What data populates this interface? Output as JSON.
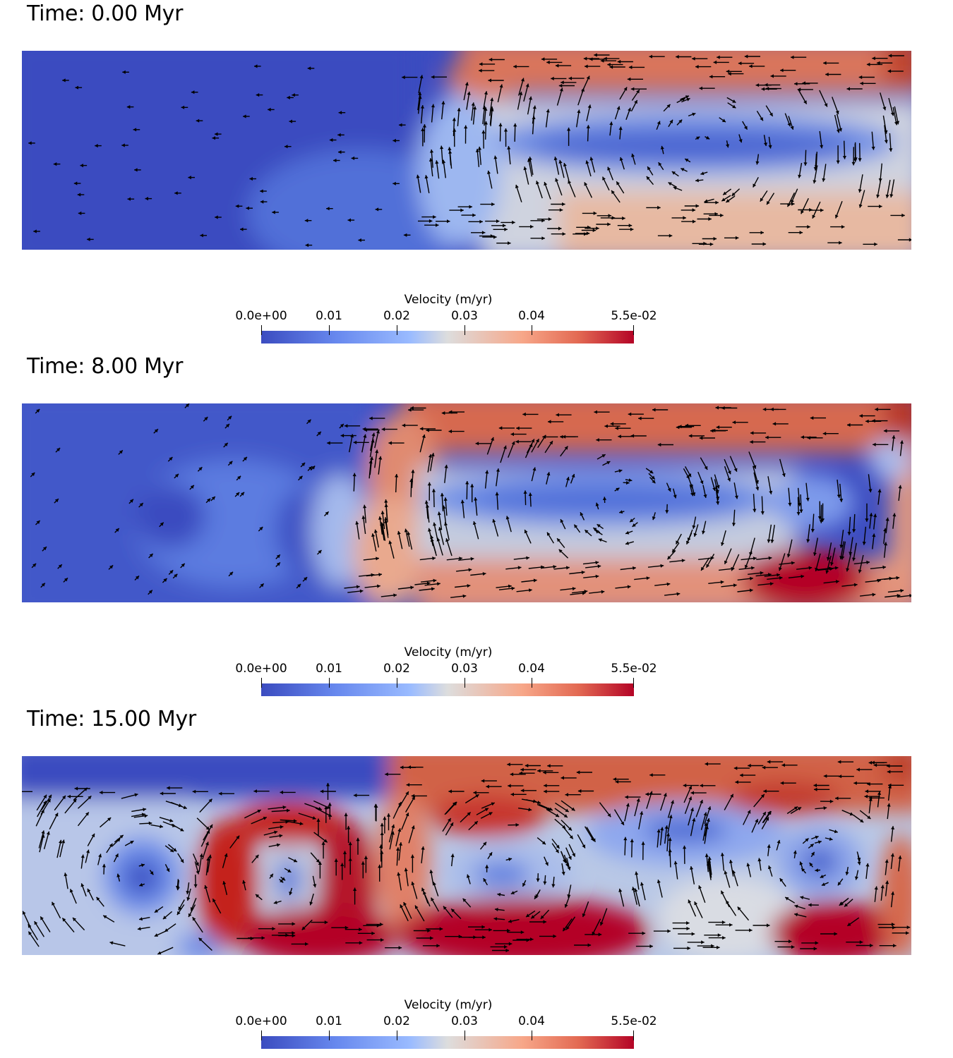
{
  "colors": {
    "low": "#3b4cc0",
    "mid": "#dddddd",
    "high": "#b40426",
    "arrow": "#000000"
  },
  "chart_data": [
    {
      "type": "heatmap",
      "title": "Time: 0.00 Myr",
      "colorbar": {
        "label": "Velocity (m/yr)",
        "range": [
          0,
          0.055
        ],
        "ticks": [
          "0.0e+00",
          "0.01",
          "0.02",
          "0.03",
          "0.04",
          "5.5e-02"
        ],
        "tick_values": [
          0,
          0.01,
          0.02,
          0.03,
          0.04,
          0.055
        ],
        "colormap": "coolwarm"
      },
      "field": "velocity magnitude with velocity vector arrows",
      "features": {
        "left_region_velocity": 0.002,
        "top_right_band_velocity": 0.045,
        "bottom_right_band_velocity": 0.035
      }
    },
    {
      "type": "heatmap",
      "title": "Time: 8.00 Myr",
      "colorbar": {
        "label": "Velocity (m/yr)",
        "range": [
          0,
          0.055
        ],
        "ticks": [
          "0.0e+00",
          "0.01",
          "0.02",
          "0.03",
          "0.04",
          "5.5e-02"
        ],
        "tick_values": [
          0,
          0.01,
          0.02,
          0.03,
          0.04,
          0.055
        ],
        "colormap": "coolwarm"
      },
      "field": "velocity magnitude with velocity vector arrows",
      "features": {
        "left_region_velocity": 0.005,
        "top_right_band_velocity": 0.045,
        "bottom_right_max_velocity": 0.055
      }
    },
    {
      "type": "heatmap",
      "title": "Time: 15.00 Myr",
      "colorbar": {
        "label": "Velocity (m/yr)",
        "range": [
          0,
          0.055
        ],
        "ticks": [
          "0.0e+00",
          "0.01",
          "0.02",
          "0.03",
          "0.04",
          "5.5e-02"
        ],
        "tick_values": [
          0,
          0.01,
          0.02,
          0.03,
          0.04,
          0.055
        ],
        "colormap": "coolwarm"
      },
      "field": "velocity magnitude with velocity vector arrows",
      "features": {
        "top_left_lid_velocity": 0.0,
        "top_right_band_velocity": 0.047,
        "max_velocity": 0.055
      }
    }
  ]
}
